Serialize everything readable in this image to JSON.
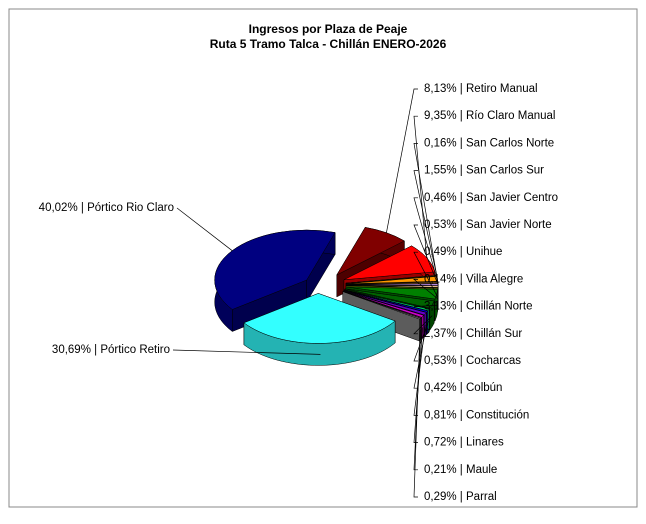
{
  "chart_data": {
    "type": "pie",
    "title": "Ingresos por Plaza de Peaje",
    "subtitle": "Ruta 5 Tramo Talca - Chillán ENERO-2026",
    "label_separator": " | ",
    "categories": [
      "Retiro Manual",
      "Río Claro Manual",
      "San Carlos Norte",
      "San Carlos Sur",
      "San Javier Centro",
      "San Javier Norte",
      "Unihue",
      "Villa Alegre",
      "Chillán Norte",
      "Chillán Sur",
      "Cocharcas",
      "Colbún",
      "Constitución",
      "Linares",
      "Maule",
      "Parral",
      "Pórtico Retiro",
      "Pórtico Rio Claro"
    ],
    "values": [
      8.13,
      9.35,
      0.16,
      1.55,
      0.46,
      0.53,
      0.49,
      0.14,
      3.13,
      2.37,
      0.53,
      0.42,
      0.81,
      0.72,
      0.21,
      0.29,
      30.69,
      40.02
    ],
    "value_labels": [
      "8,13%",
      "9,35%",
      "0,16%",
      "1,55%",
      "0,46%",
      "0,53%",
      "0,49%",
      "0,14%",
      "3,13%",
      "2,37%",
      "0,53%",
      "0,42%",
      "0,81%",
      "0,72%",
      "0,21%",
      "0,29%",
      "30,69%",
      "40,02%"
    ],
    "colors": [
      "#800000",
      "#ff0000",
      "#ffff00",
      "#ff9900",
      "#996633",
      "#cc99ff",
      "#ffcc99",
      "#99cc00",
      "#008000",
      "#006400",
      "#00cc66",
      "#0000ff",
      "#6600cc",
      "#cc00cc",
      "#ff66cc",
      "#999999",
      "#33ffff",
      "#000080"
    ]
  }
}
